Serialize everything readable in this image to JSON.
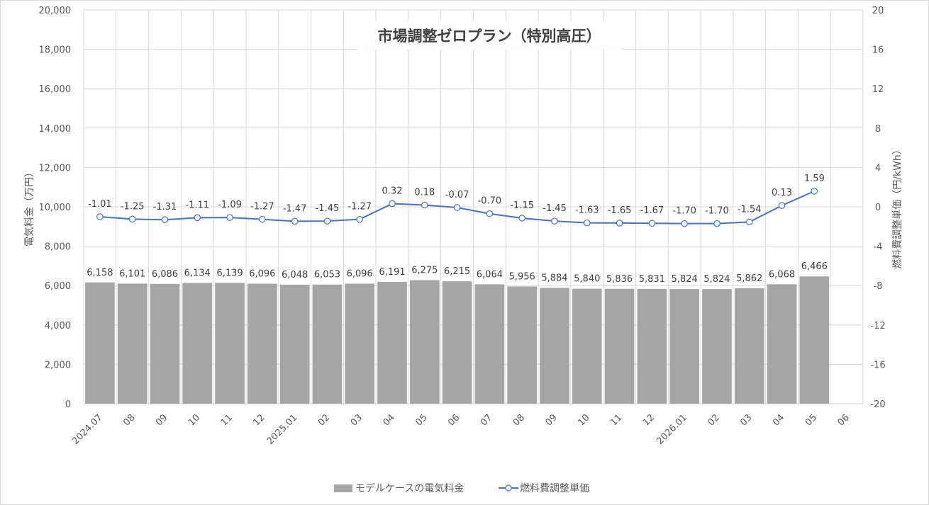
{
  "chart_data": {
    "type": "bar+line",
    "title": "市場調整ゼロプラン（特別高圧）",
    "ylabel_left": "電気料金（万円）",
    "ylabel_right": "燃料費調整単価（円/kWh）",
    "categories": [
      "2024.07",
      "08",
      "09",
      "10",
      "11",
      "12",
      "2025.01",
      "02",
      "03",
      "04",
      "05",
      "06",
      "07",
      "08",
      "09",
      "10",
      "11",
      "12",
      "2026.01",
      "02",
      "03",
      "04",
      "05",
      "06"
    ],
    "y_left": {
      "min": 0,
      "max": 20000,
      "step": 2000,
      "tick_labels": [
        "0",
        "2,000",
        "4,000",
        "6,000",
        "8,000",
        "10,000",
        "12,000",
        "14,000",
        "16,000",
        "18,000",
        "20,000"
      ]
    },
    "y_right": {
      "min": -20,
      "max": 20,
      "step": 4,
      "tick_labels": [
        "-20",
        "-16",
        "-12",
        "-8",
        "-4",
        "0",
        "4",
        "8",
        "12",
        "16",
        "20"
      ]
    },
    "grid": true,
    "legend_position": "bottom",
    "series": [
      {
        "name": "モデルケースの電気料金",
        "type": "bar",
        "axis": "left",
        "color": "#a5a5a5",
        "values": [
          6158,
          6101,
          6086,
          6134,
          6139,
          6096,
          6048,
          6053,
          6096,
          6191,
          6275,
          6215,
          6064,
          5956,
          5884,
          5840,
          5836,
          5831,
          5824,
          5824,
          5862,
          6068,
          6466,
          null
        ],
        "labels": [
          "6,158",
          "6,101",
          "6,086",
          "6,134",
          "6,139",
          "6,096",
          "6,048",
          "6,053",
          "6,096",
          "6,191",
          "6,275",
          "6,215",
          "6,064",
          "5,956",
          "5,884",
          "5,840",
          "5,836",
          "5,831",
          "5,824",
          "5,824",
          "5,862",
          "6,068",
          "6,466",
          ""
        ]
      },
      {
        "name": "燃料費調整単価",
        "type": "line",
        "axis": "right",
        "color": "#4472c4",
        "values": [
          -1.01,
          -1.25,
          -1.31,
          -1.11,
          -1.09,
          -1.27,
          -1.47,
          -1.45,
          -1.27,
          0.32,
          0.18,
          -0.07,
          -0.7,
          -1.15,
          -1.45,
          -1.63,
          -1.65,
          -1.67,
          -1.7,
          -1.7,
          -1.54,
          0.13,
          1.59,
          null
        ],
        "labels": [
          "-1.01",
          "-1.25",
          "-1.31",
          "-1.11",
          "-1.09",
          "-1.27",
          "-1.47",
          "-1.45",
          "-1.27",
          "0.32",
          "0.18",
          "-0.07",
          "-0.70",
          "-1.15",
          "-1.45",
          "-1.63",
          "-1.65",
          "-1.67",
          "-1.70",
          "-1.70",
          "-1.54",
          "0.13",
          "1.59",
          ""
        ]
      }
    ]
  }
}
